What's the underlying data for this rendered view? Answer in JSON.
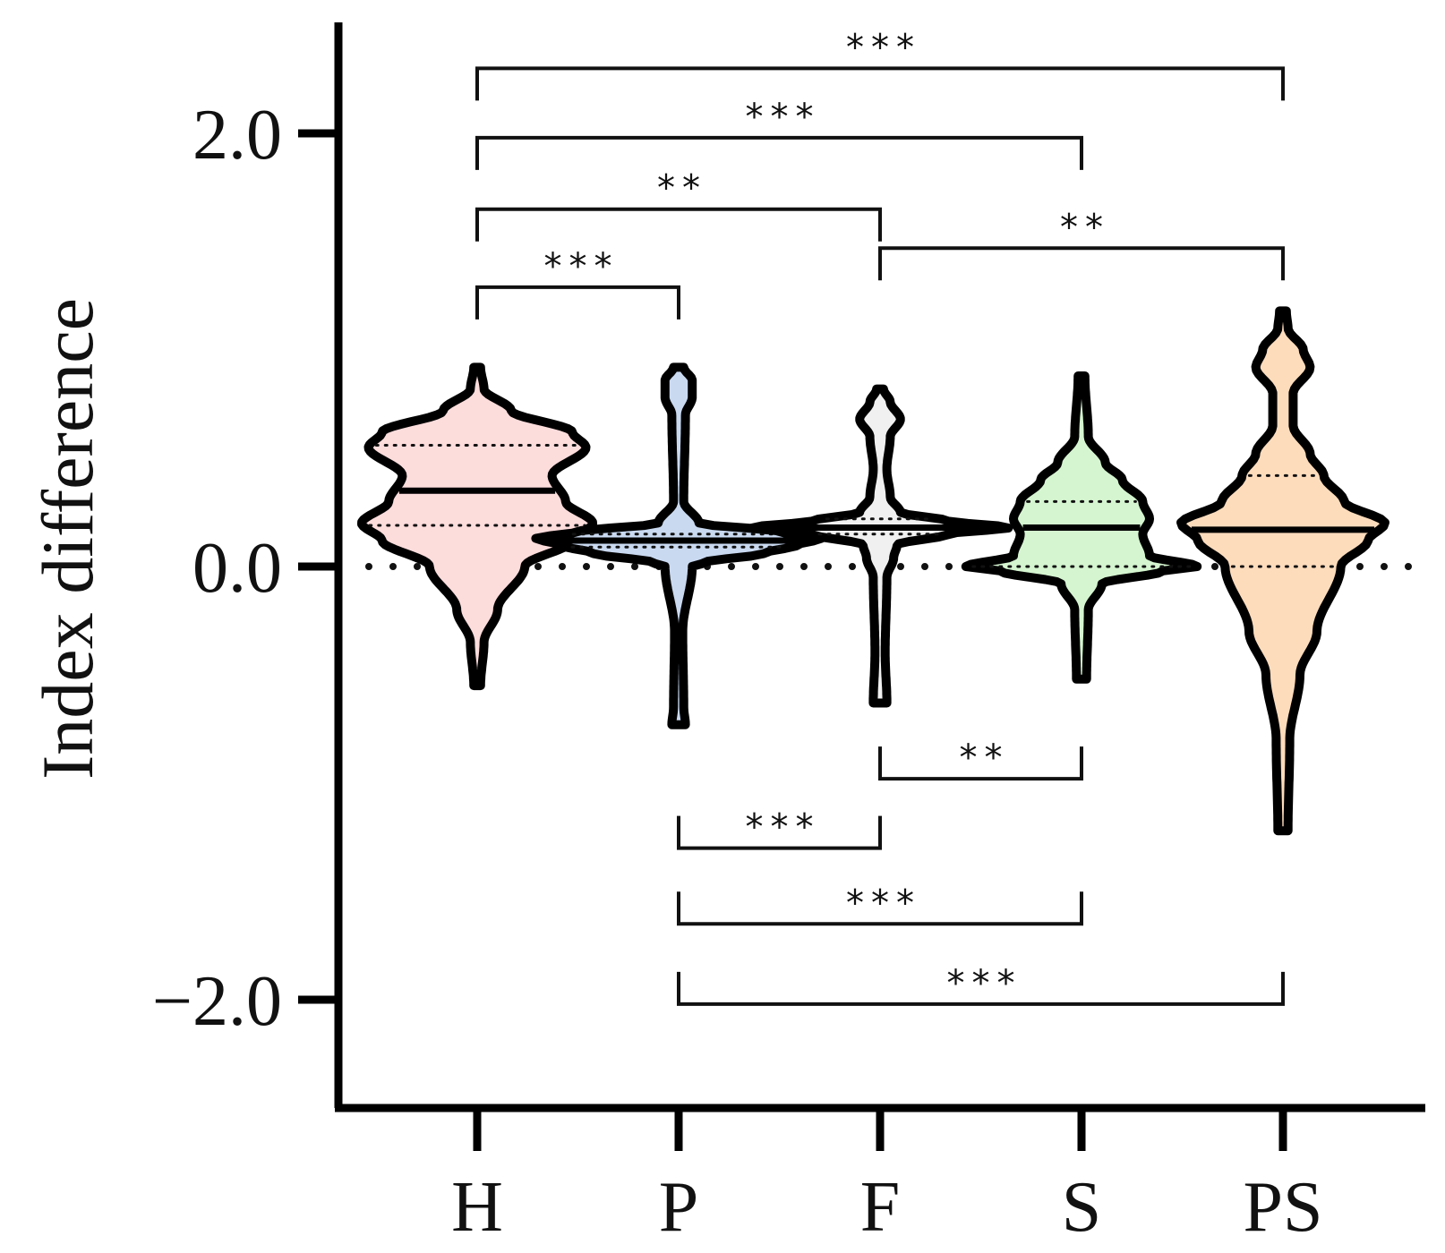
{
  "chart_data": {
    "type": "violin",
    "title": "",
    "xlabel": "",
    "ylabel": "Index difference",
    "categories": [
      "H",
      "P",
      "F",
      "S",
      "PS"
    ],
    "ylim": [
      -2.5,
      2.5
    ],
    "yticks": [
      -2.0,
      0.0,
      2.0
    ],
    "ytick_labels": [
      "−2.0",
      "0.0",
      "2.0"
    ],
    "reference_line": {
      "y": 0.0,
      "style": "dotted"
    },
    "grid": false,
    "legend": "none",
    "series": [
      {
        "category": "H",
        "color": "#fddcdc",
        "min": -0.55,
        "max": 0.92,
        "median": 0.35,
        "q1": 0.19,
        "q3": 0.56,
        "profile": [
          [
            -0.55,
            0.01
          ],
          [
            -0.35,
            0.02
          ],
          [
            -0.2,
            0.06
          ],
          [
            0,
            0.14
          ],
          [
            0.12,
            0.28
          ],
          [
            0.2,
            0.34
          ],
          [
            0.3,
            0.26
          ],
          [
            0.42,
            0.22
          ],
          [
            0.55,
            0.32
          ],
          [
            0.62,
            0.28
          ],
          [
            0.72,
            0.1
          ],
          [
            0.82,
            0.02
          ],
          [
            0.92,
            0.01
          ]
        ]
      },
      {
        "category": "P",
        "color": "#c9d9f0",
        "min": -0.73,
        "max": 0.92,
        "median": 0.12,
        "q1": 0.09,
        "q3": 0.15,
        "profile": [
          [
            -0.73,
            0.02
          ],
          [
            -0.65,
            0.015
          ],
          [
            -0.3,
            0.012
          ],
          [
            0,
            0.04
          ],
          [
            0.02,
            0.08
          ],
          [
            0.06,
            0.25
          ],
          [
            0.1,
            0.35
          ],
          [
            0.13,
            0.42
          ],
          [
            0.16,
            0.3
          ],
          [
            0.2,
            0.06
          ],
          [
            0.3,
            0.015
          ],
          [
            0.7,
            0.02
          ],
          [
            0.78,
            0.04
          ],
          [
            0.86,
            0.04
          ],
          [
            0.92,
            0.015
          ]
        ]
      },
      {
        "category": "F",
        "color": "#f0f0f0",
        "min": -0.63,
        "max": 0.82,
        "median": 0.18,
        "q1": 0.15,
        "q3": 0.22,
        "profile": [
          [
            -0.63,
            0.02
          ],
          [
            -0.4,
            0.015
          ],
          [
            -0.05,
            0.02
          ],
          [
            0.04,
            0.04
          ],
          [
            0.1,
            0.05
          ],
          [
            0.15,
            0.2
          ],
          [
            0.18,
            0.38
          ],
          [
            0.21,
            0.2
          ],
          [
            0.25,
            0.06
          ],
          [
            0.32,
            0.03
          ],
          [
            0.45,
            0.02
          ],
          [
            0.6,
            0.03
          ],
          [
            0.68,
            0.06
          ],
          [
            0.76,
            0.03
          ],
          [
            0.82,
            0.01
          ]
        ]
      },
      {
        "category": "S",
        "color": "#d5f5d0",
        "min": -0.52,
        "max": 0.88,
        "median": 0.18,
        "q1": 0.0,
        "q3": 0.3,
        "profile": [
          [
            -0.52,
            0.015
          ],
          [
            -0.2,
            0.02
          ],
          [
            -0.08,
            0.06
          ],
          [
            -0.02,
            0.24
          ],
          [
            0.0,
            0.34
          ],
          [
            0.05,
            0.2
          ],
          [
            0.15,
            0.18
          ],
          [
            0.22,
            0.2
          ],
          [
            0.3,
            0.18
          ],
          [
            0.4,
            0.12
          ],
          [
            0.48,
            0.07
          ],
          [
            0.6,
            0.02
          ],
          [
            0.88,
            0.01
          ]
        ]
      },
      {
        "category": "PS",
        "color": "#fddcbc",
        "min": -1.22,
        "max": 1.18,
        "median": 0.17,
        "q1": 0.0,
        "q3": 0.42,
        "profile": [
          [
            -1.22,
            0.015
          ],
          [
            -0.8,
            0.02
          ],
          [
            -0.5,
            0.05
          ],
          [
            -0.3,
            0.1
          ],
          [
            0,
            0.17
          ],
          [
            0.12,
            0.25
          ],
          [
            0.2,
            0.3
          ],
          [
            0.3,
            0.18
          ],
          [
            0.42,
            0.12
          ],
          [
            0.52,
            0.08
          ],
          [
            0.65,
            0.03
          ],
          [
            0.8,
            0.03
          ],
          [
            0.92,
            0.08
          ],
          [
            1.0,
            0.06
          ],
          [
            1.1,
            0.015
          ],
          [
            1.18,
            0.01
          ]
        ]
      }
    ],
    "comparisons": [
      {
        "from": "H",
        "to": "PS",
        "y": 2.3,
        "label": "***",
        "side": "top"
      },
      {
        "from": "H",
        "to": "S",
        "y": 1.98,
        "label": "***",
        "side": "top"
      },
      {
        "from": "H",
        "to": "F",
        "y": 1.65,
        "label": "**",
        "side": "top"
      },
      {
        "from": "F",
        "to": "PS",
        "y": 1.47,
        "label": "**",
        "side": "top"
      },
      {
        "from": "H",
        "to": "P",
        "y": 1.29,
        "label": "***",
        "side": "top"
      },
      {
        "from": "F",
        "to": "S",
        "y": -0.98,
        "label": "**",
        "side": "bottom"
      },
      {
        "from": "P",
        "to": "F",
        "y": -1.3,
        "label": "***",
        "side": "bottom"
      },
      {
        "from": "P",
        "to": "S",
        "y": -1.65,
        "label": "***",
        "side": "bottom"
      },
      {
        "from": "P",
        "to": "PS",
        "y": -2.02,
        "label": "***",
        "side": "bottom"
      }
    ]
  }
}
